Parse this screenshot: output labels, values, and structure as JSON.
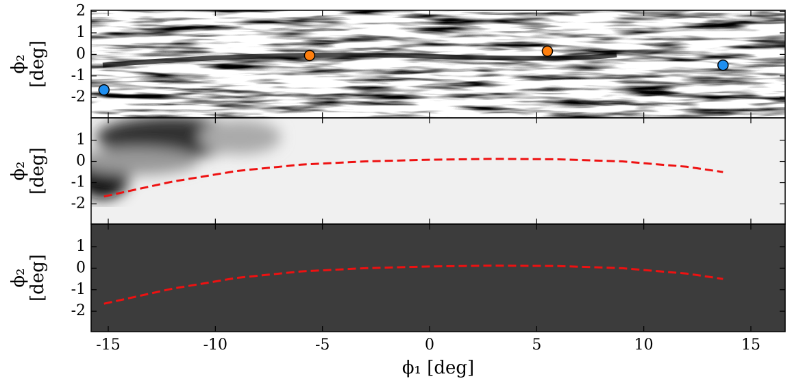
{
  "chart_data": [
    {
      "type": "scatter",
      "y_label": [
        "ϕ₂",
        "[deg]"
      ],
      "xlim": [
        -15.8,
        16.6
      ],
      "xticks": [
        -15,
        -10,
        -5,
        0,
        5,
        10,
        15
      ],
      "ylim": [
        -2.95,
        2.05
      ],
      "yticks": [
        -2,
        -1,
        0,
        1,
        2
      ],
      "series": [
        {
          "color": "#ff7f0e",
          "x": [
            -5.6,
            5.5
          ],
          "values": [
            -0.05,
            0.15
          ]
        },
        {
          "color": "#1f8ff0",
          "x": [
            -15.2,
            13.7
          ],
          "values": [
            -1.65,
            -0.5
          ]
        }
      ]
    },
    {
      "type": "line",
      "y_label": [
        "ϕ₂",
        "[deg]"
      ],
      "xlim": [
        -15.8,
        16.6
      ],
      "xticks": [
        -15,
        -10,
        -5,
        0,
        5,
        10,
        15
      ],
      "ylim": [
        -2.95,
        2.05
      ],
      "yticks": [
        -2,
        -1,
        0,
        1
      ],
      "series": [
        {
          "color": "#ee1111",
          "x": [
            -15.2,
            -12,
            -9,
            -6,
            -3,
            0,
            3,
            6,
            9,
            12,
            13.7
          ],
          "values": [
            -1.65,
            -0.95,
            -0.45,
            -0.15,
            0.0,
            0.08,
            0.12,
            0.1,
            0.0,
            -0.25,
            -0.5
          ]
        }
      ]
    },
    {
      "type": "line",
      "y_label": [
        "ϕ₂",
        "[deg]"
      ],
      "x_label": "ϕ₁ [deg]",
      "xlim": [
        -15.8,
        16.6
      ],
      "xticks": [
        -15,
        -10,
        -5,
        0,
        5,
        10,
        15
      ],
      "ylim": [
        -2.95,
        2.05
      ],
      "yticks": [
        -2,
        -1,
        0,
        1
      ],
      "series": [
        {
          "color": "#ee1111",
          "x": [
            -15.2,
            -12,
            -9,
            -6,
            -3,
            0,
            3,
            6,
            9,
            12,
            13.7
          ],
          "values": [
            -1.65,
            -0.95,
            -0.45,
            -0.15,
            0.0,
            0.08,
            0.12,
            0.1,
            0.0,
            -0.25,
            -0.5
          ]
        }
      ]
    }
  ]
}
